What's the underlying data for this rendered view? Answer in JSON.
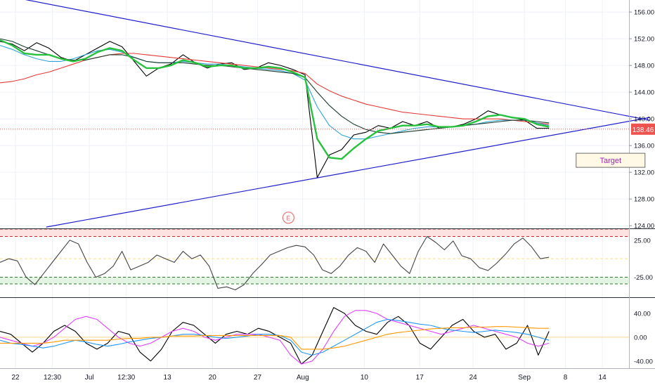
{
  "chart_data": [
    {
      "type": "line",
      "title": "",
      "price_axis_ticks": [
        "156.00",
        "152.00",
        "148.00",
        "144.00",
        "140.00",
        "136.00",
        "132.00",
        "128.00",
        "124.00"
      ],
      "price_axis_values": [
        156,
        152,
        148,
        144,
        140,
        136,
        132,
        128,
        124
      ],
      "last_price_label": "138.46",
      "last_price": 138.46,
      "ylim": [
        123.6,
        157.8
      ],
      "x_tick_labels": [
        "22",
        "12:30",
        "Jul",
        "12:30",
        "13",
        "20",
        "27",
        "Aug",
        "10",
        "17",
        "24",
        "Sep",
        "8",
        "14"
      ],
      "x_tick_units": [
        0,
        1.8,
        3.6,
        5.4,
        7.4,
        9.6,
        11.8,
        14,
        17,
        19.7,
        22.3,
        24.8,
        26.8,
        28.6
      ],
      "trendlines": [
        {
          "name": "upper-trendline",
          "from": [
            -0.6,
            158.5
          ],
          "to": [
            30.9,
            139.8
          ]
        },
        {
          "name": "lower-trendline",
          "from": [
            1.5,
            123.8
          ],
          "to": [
            30.9,
            140.2
          ]
        }
      ],
      "series": [
        {
          "name": "",
          "color": "#000000",
          "values": [
            151.6,
            151.2,
            150.2,
            151.4,
            150.6,
            149.2,
            148.6,
            149.6,
            150.6,
            151.6,
            150.8,
            148.6,
            146.4,
            147.6,
            148.2,
            149.6,
            148.4,
            147.6,
            148.2,
            148.4,
            147.4,
            147.6,
            148.4,
            148.0,
            147.4,
            146.6,
            131.2,
            134.6,
            135.4,
            137.6,
            138.0,
            139.0,
            138.6,
            139.6,
            139.0,
            139.6,
            138.6,
            138.8,
            139.2,
            140.0,
            141.2,
            140.6,
            140.2,
            139.8,
            138.6,
            138.6
          ]
        },
        {
          "name": "",
          "color": "#e53935",
          "values": [
            145.4,
            145.6,
            146.0,
            146.6,
            147.0,
            147.6,
            148.2,
            148.8,
            149.2,
            149.6,
            149.8,
            149.8,
            149.6,
            149.4,
            149.2,
            149.0,
            148.8,
            148.6,
            148.4,
            148.2,
            148.0,
            147.8,
            147.6,
            147.4,
            147.2,
            146.8,
            145.2,
            144.2,
            143.4,
            142.8,
            142.2,
            141.8,
            141.4,
            141.0,
            140.8,
            140.6,
            140.4,
            140.2,
            140.0,
            140.0,
            140.0,
            140.0,
            139.8,
            139.6,
            139.4,
            139.2
          ]
        },
        {
          "name": "",
          "color": "#2ea3d6",
          "values": [
            151.0,
            150.4,
            149.6,
            149.0,
            148.6,
            148.6,
            149.0,
            149.6,
            150.2,
            150.4,
            150.0,
            149.2,
            148.6,
            148.4,
            148.4,
            148.6,
            148.4,
            148.2,
            148.2,
            148.0,
            147.8,
            147.6,
            147.4,
            147.2,
            146.8,
            145.8,
            141.8,
            139.0,
            137.6,
            137.0,
            137.0,
            137.4,
            137.8,
            138.2,
            138.6,
            138.8,
            138.8,
            138.8,
            139.0,
            139.2,
            139.6,
            139.8,
            139.8,
            139.8,
            139.4,
            139.0
          ]
        },
        {
          "name": "",
          "color": "#1a3a2a",
          "values": [
            152.0,
            151.6,
            150.8,
            150.2,
            149.6,
            149.0,
            148.8,
            148.8,
            149.2,
            149.6,
            149.6,
            149.2,
            148.6,
            148.4,
            148.4,
            148.4,
            148.2,
            148.0,
            148.0,
            147.8,
            147.6,
            147.4,
            147.2,
            147.0,
            146.8,
            146.2,
            144.0,
            142.0,
            140.4,
            139.2,
            138.4,
            138.0,
            137.8,
            138.0,
            138.2,
            138.4,
            138.6,
            138.8,
            139.0,
            139.2,
            139.4,
            139.6,
            139.8,
            139.8,
            139.6,
            139.4
          ]
        },
        {
          "name": "",
          "color": "#27c13d",
          "values": [
            151.8,
            151.0,
            149.8,
            149.6,
            149.6,
            149.0,
            148.6,
            149.0,
            150.0,
            150.6,
            150.2,
            148.8,
            147.6,
            147.6,
            148.0,
            148.8,
            148.4,
            147.8,
            148.0,
            148.0,
            147.6,
            147.6,
            147.8,
            147.6,
            147.0,
            146.2,
            137.0,
            134.2,
            134.0,
            135.6,
            137.0,
            138.2,
            138.6,
            139.0,
            139.0,
            139.2,
            138.8,
            138.8,
            139.0,
            139.6,
            140.4,
            140.6,
            140.2,
            140.0,
            139.2,
            138.8
          ]
        }
      ],
      "events": [
        {
          "label": "E",
          "x_unit": 13.3,
          "y": 125.2
        }
      ],
      "annotations": [
        {
          "label": "Target",
          "x_unit": 29.0,
          "y": 133.8
        }
      ]
    },
    {
      "type": "line",
      "title": "",
      "ticks": [
        "25.00",
        "-25.00"
      ],
      "tick_values": [
        25,
        -25
      ],
      "ylim": [
        -52,
        40
      ],
      "levels": [
        40,
        30,
        0,
        -25,
        -34
      ],
      "series": [
        {
          "name": "",
          "color": "#444444",
          "values": [
            -5,
            0,
            -3,
            -25,
            -35,
            -20,
            -5,
            10,
            25,
            20,
            -5,
            -25,
            -20,
            -10,
            10,
            -15,
            -10,
            -5,
            5,
            0,
            -5,
            10,
            0,
            5,
            -10,
            -40,
            -38,
            -42,
            -35,
            -20,
            -8,
            5,
            10,
            15,
            18,
            16,
            5,
            -15,
            -20,
            -10,
            5,
            15,
            10,
            -5,
            20,
            5,
            -10,
            -20,
            10,
            30,
            22,
            12,
            24,
            4,
            0,
            -12,
            -16,
            -6,
            6,
            20,
            28,
            16,
            0,
            2
          ]
        }
      ]
    },
    {
      "type": "line",
      "title": "",
      "ticks": [
        "40.00",
        "0.00",
        "-40.00"
      ],
      "tick_values": [
        40,
        0,
        -40
      ],
      "ylim": [
        -52,
        66
      ],
      "series": [
        {
          "name": "",
          "color": "#000000",
          "values": [
            10,
            5,
            -10,
            -25,
            -10,
            10,
            20,
            10,
            -10,
            -20,
            -10,
            10,
            5,
            -25,
            -40,
            -20,
            10,
            25,
            20,
            5,
            -10,
            5,
            10,
            5,
            15,
            10,
            0,
            -10,
            -45,
            -30,
            10,
            50,
            40,
            20,
            10,
            5,
            25,
            35,
            20,
            -10,
            -20,
            0,
            20,
            30,
            10,
            0,
            5,
            -20,
            -10,
            20,
            -30,
            10
          ]
        },
        {
          "name": "",
          "color": "#e040fb",
          "values": [
            0,
            -5,
            -10,
            -15,
            -10,
            0,
            15,
            30,
            35,
            30,
            15,
            0,
            -10,
            -15,
            -10,
            0,
            10,
            15,
            10,
            0,
            -5,
            0,
            5,
            5,
            5,
            0,
            -5,
            -30,
            -45,
            -40,
            -20,
            10,
            35,
            45,
            45,
            40,
            30,
            25,
            20,
            15,
            10,
            5,
            10,
            15,
            20,
            15,
            10,
            5,
            0,
            -10,
            -15,
            -10
          ]
        },
        {
          "name": "",
          "color": "#2196f3",
          "values": [
            -5,
            -10,
            -12,
            -15,
            -18,
            -15,
            -10,
            -5,
            -8,
            -12,
            -15,
            -12,
            -8,
            -5,
            -2,
            0,
            2,
            5,
            5,
            3,
            0,
            -2,
            0,
            2,
            5,
            5,
            3,
            -5,
            -25,
            -30,
            -25,
            -15,
            -5,
            5,
            15,
            25,
            30,
            28,
            25,
            22,
            20,
            15,
            12,
            10,
            8,
            10,
            12,
            10,
            8,
            5,
            0,
            -5
          ]
        },
        {
          "name": "",
          "color": "#ff9800",
          "values": [
            -10,
            -10,
            -10,
            -10,
            -10,
            -8,
            -5,
            -5,
            -5,
            -5,
            -5,
            -3,
            -2,
            -2,
            0,
            0,
            2,
            2,
            2,
            3,
            3,
            3,
            3,
            3,
            3,
            3,
            3,
            0,
            -20,
            -20,
            -20,
            -18,
            -15,
            -10,
            -5,
            0,
            5,
            8,
            10,
            12,
            14,
            15,
            16,
            16,
            17,
            17,
            18,
            18,
            17,
            16,
            15,
            15
          ]
        }
      ]
    }
  ],
  "colors": {
    "price_tag": "#ef5350",
    "trendline": "#1e1ecd",
    "target_box_bg": "#fff9e6",
    "target_text": "#9c27b0"
  }
}
